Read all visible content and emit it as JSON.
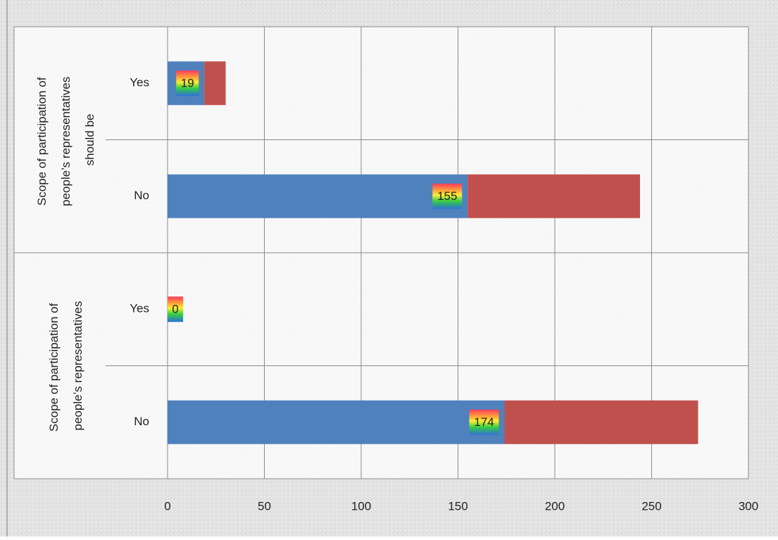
{
  "chart_data": {
    "type": "stacked-barh",
    "groups": [
      "Scope of participation of people’s representatives should be",
      "Scope of participation of people’s representatives"
    ],
    "categories": [
      "Yes",
      "No",
      "Yes",
      "No"
    ],
    "series": [
      {
        "color": "#4f81bd",
        "values": [
          19,
          155,
          0,
          174
        ],
        "data_labels": true
      },
      {
        "color": "#c0504d",
        "values": [
          11,
          89,
          0,
          100
        ]
      }
    ],
    "xlim": [
      0,
      300
    ],
    "xticks": [
      0,
      50,
      100,
      150,
      200,
      250,
      300
    ],
    "grid": true
  }
}
